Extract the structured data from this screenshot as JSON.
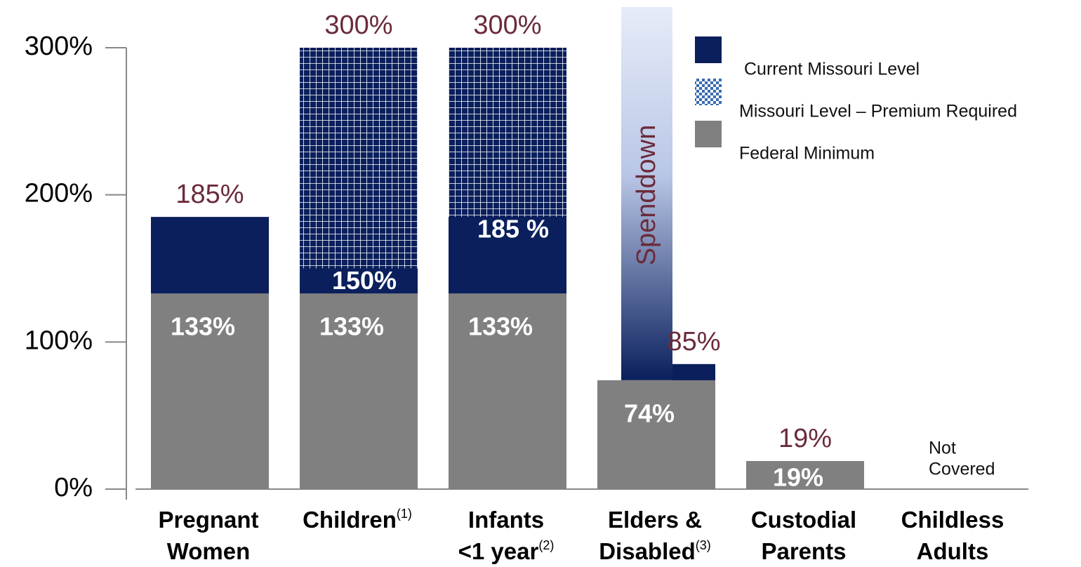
{
  "chart_data": {
    "type": "bar",
    "categories": [
      [
        "Pregnant",
        "Women"
      ],
      [
        "Children",
        "",
        ""
      ],
      [
        "Infants",
        "<1 year"
      ],
      [
        "Elders &",
        "Disabled"
      ],
      [
        "Custodial",
        "Parents"
      ],
      [
        "Childless",
        "Adults"
      ]
    ],
    "category_notes": [
      null,
      "(1)",
      "(2)",
      "(3)",
      null,
      null
    ],
    "series": [
      {
        "name": "Missouri Level – Premium Required",
        "color": "#0a1f5c",
        "pattern": "grid",
        "values": [
          null,
          300,
          300,
          null,
          null,
          null
        ],
        "value_labels": [
          null,
          "300%",
          "300%",
          null,
          null,
          null
        ]
      },
      {
        "name": "Current Missouri Level",
        "color": "#0a1f5c",
        "values": [
          185,
          150,
          185,
          85,
          19,
          null
        ],
        "value_labels": [
          "185%",
          "150%",
          "185 %",
          "85%",
          "19%",
          null
        ]
      },
      {
        "name": "Federal Minimum",
        "color": "#808080",
        "values": [
          133,
          133,
          133,
          74,
          19,
          null
        ],
        "value_labels": [
          "133%",
          "133%",
          "133%",
          "74%",
          "19%",
          null
        ]
      }
    ],
    "legend_order": [
      1,
      0,
      2
    ],
    "annotations": {
      "spenddown": "Spenddown",
      "not_covered": [
        "Not",
        "Covered"
      ]
    },
    "ylim": [
      0,
      300
    ],
    "yticks": [
      {
        "value": 0,
        "label": "0%"
      },
      {
        "value": 100,
        "label": "100%"
      },
      {
        "value": 200,
        "label": "200%"
      },
      {
        "value": 300,
        "label": "300%"
      }
    ]
  }
}
